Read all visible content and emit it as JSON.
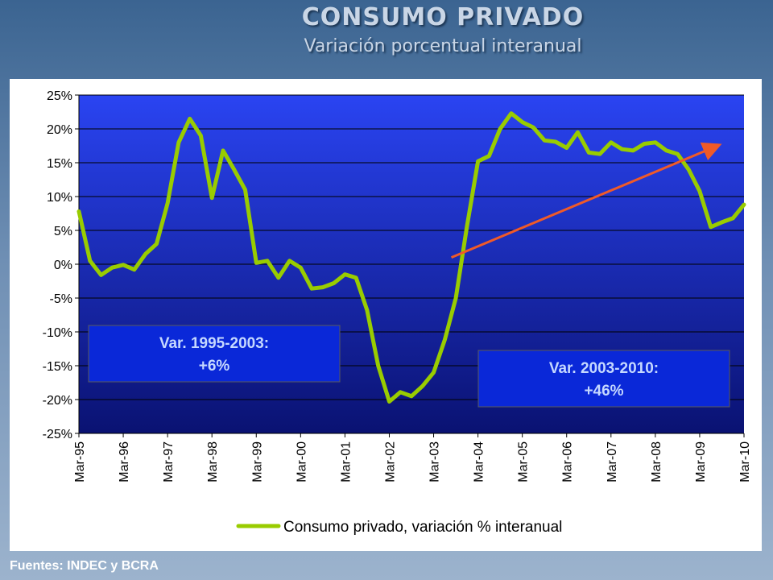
{
  "header": {
    "title": "CONSUMO PRIVADO",
    "subtitle": "Variación porcentual interanual"
  },
  "footer": {
    "source": "Fuentes: INDEC y BCRA"
  },
  "chart_data": {
    "type": "line",
    "ylim": [
      -25,
      25
    ],
    "yticks": [
      25,
      20,
      15,
      10,
      5,
      0,
      -5,
      -10,
      -15,
      -20,
      -25
    ],
    "ytick_labels": [
      "25%",
      "20%",
      "15%",
      "10%",
      "5%",
      "0%",
      "-5%",
      "-10%",
      "-15%",
      "-20%",
      "-25%"
    ],
    "xlim": [
      1995.0,
      2010.0
    ],
    "xtick_labels": [
      "Mar-95",
      "Mar-96",
      "Mar-97",
      "Mar-98",
      "Mar-99",
      "Mar-00",
      "Mar-01",
      "Mar-02",
      "Mar-03",
      "Mar-04",
      "Mar-05",
      "Mar-06",
      "Mar-07",
      "Mar-08",
      "Mar-09",
      "Mar-10"
    ],
    "legend_position": "bottom",
    "series": [
      {
        "name": "Consumo privado, variación % interanual",
        "color": "#99cc00",
        "x": [
          1995.0,
          1995.25,
          1995.5,
          1995.75,
          1996.0,
          1996.25,
          1996.5,
          1996.75,
          1997.0,
          1997.25,
          1997.5,
          1997.75,
          1998.0,
          1998.25,
          1998.5,
          1998.75,
          1999.0,
          1999.25,
          1999.5,
          1999.75,
          2000.0,
          2000.25,
          2000.5,
          2000.75,
          2001.0,
          2001.25,
          2001.5,
          2001.75,
          2002.0,
          2002.25,
          2002.5,
          2002.75,
          2003.0,
          2003.25,
          2003.5,
          2003.75,
          2004.0,
          2004.25,
          2004.5,
          2004.75,
          2005.0,
          2005.25,
          2005.5,
          2005.75,
          2006.0,
          2006.25,
          2006.5,
          2006.75,
          2007.0,
          2007.25,
          2007.5,
          2007.75,
          2008.0,
          2008.25,
          2008.5,
          2008.75,
          2009.0,
          2009.25,
          2009.5,
          2009.75,
          2010.0
        ],
        "values": [
          7.8,
          0.5,
          -1.6,
          -0.5,
          -0.1,
          -0.8,
          1.5,
          3.0,
          9.0,
          18.0,
          21.5,
          19.0,
          9.8,
          16.8,
          14.0,
          11.0,
          0.2,
          0.5,
          -2.0,
          0.5,
          -0.5,
          -3.6,
          -3.4,
          -2.8,
          -1.5,
          -2.0,
          -6.8,
          -15.0,
          -20.3,
          -18.9,
          -19.5,
          -18.0,
          -16.0,
          -11.2,
          -5.0,
          5.5,
          15.2,
          16.0,
          20.0,
          22.3,
          21.0,
          20.2,
          18.3,
          18.1,
          17.2,
          19.5,
          16.5,
          16.3,
          18.0,
          17.0,
          16.8,
          17.8,
          18.0,
          16.8,
          16.3,
          14.0,
          10.8,
          5.5,
          6.2,
          6.8,
          8.8
        ]
      }
    ],
    "trend_arrow": {
      "color": "#f05a28",
      "from": {
        "x": 2003.4,
        "y": 1.0
      },
      "to": {
        "x": 2009.4,
        "y": 17.5
      }
    },
    "annotations": [
      {
        "line1": "Var. 1995-2003:",
        "line2": "+6%"
      },
      {
        "line1": "Var. 2003-2010:",
        "line2": "+46%"
      }
    ],
    "colors": {
      "plot_bg_top": "#2a44f2",
      "plot_bg_bottom": "#0a1272",
      "gridline": "#000000",
      "annotation_bg": "#0a28d8",
      "annotation_text": "#c5d8ff"
    }
  }
}
